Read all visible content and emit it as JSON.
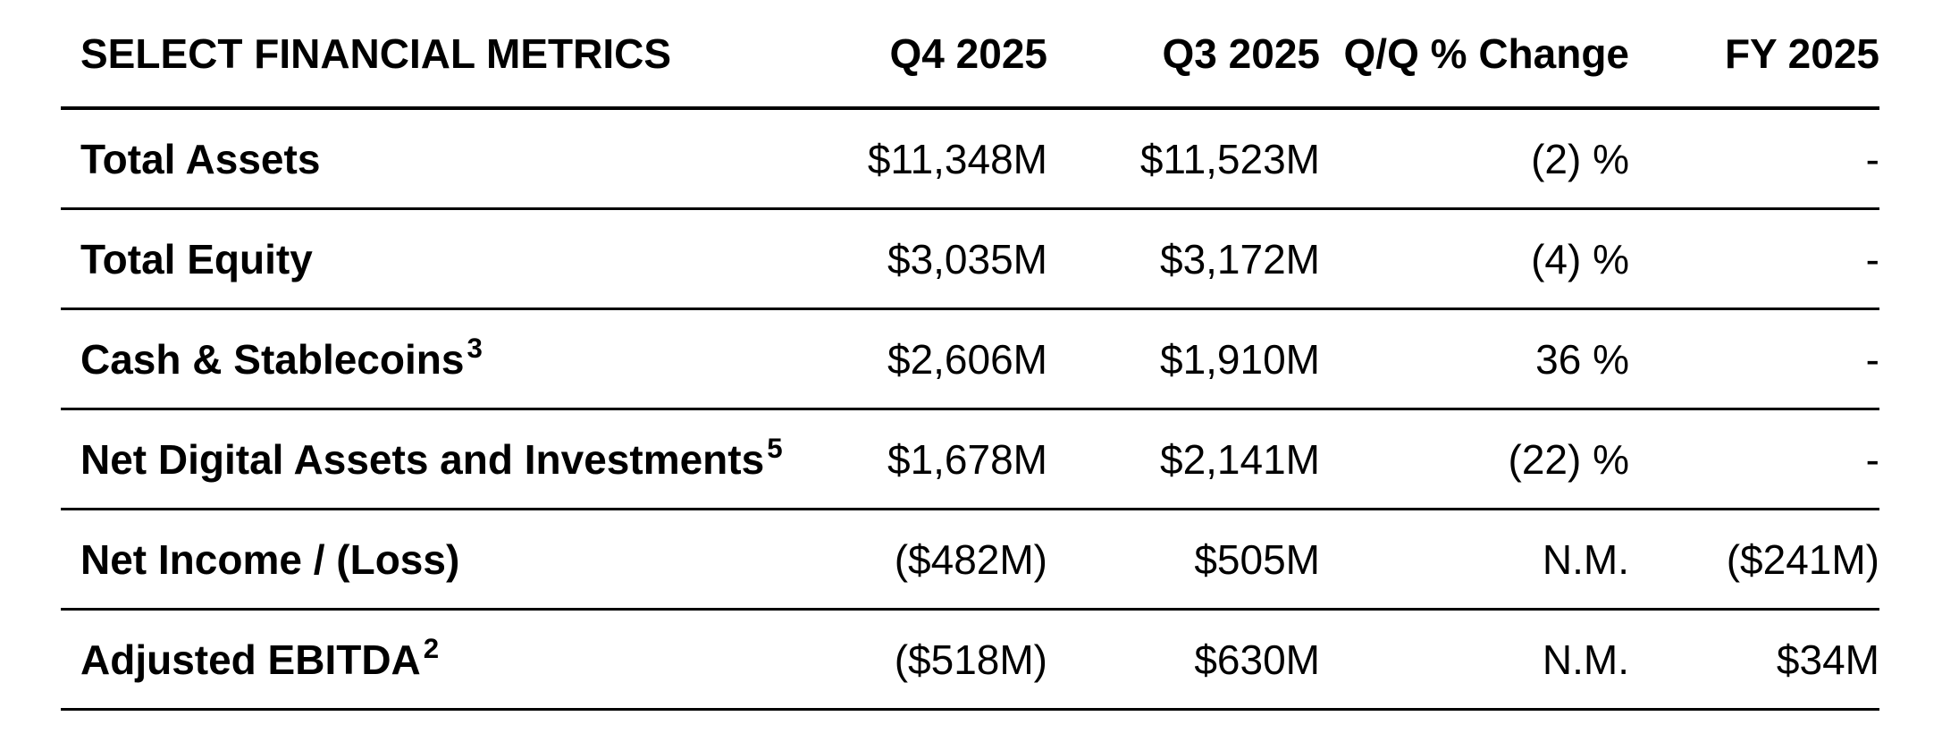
{
  "page": {
    "background_color": "#ffffff",
    "text_color": "#000000",
    "rule_color": "#000000"
  },
  "table": {
    "header": {
      "metric_label": "SELECT FINANCIAL METRICS",
      "columns": [
        "Q4 2025",
        "Q3 2025",
        "Q/Q % Change",
        "FY 2025"
      ]
    },
    "rows": [
      {
        "metric": "Total Assets",
        "sup": "",
        "q4": "$11,348M",
        "q3": "$11,523M",
        "qq": "(2) %",
        "fy": "-"
      },
      {
        "metric": "Total Equity",
        "sup": "",
        "q4": "$3,035M",
        "q3": "$3,172M",
        "qq": "(4) %",
        "fy": "-"
      },
      {
        "metric": "Cash & Stablecoins",
        "sup": "3",
        "q4": "$2,606M",
        "q3": "$1,910M",
        "qq": "36 %",
        "fy": "-"
      },
      {
        "metric": "Net Digital Assets and Investments",
        "sup": "5",
        "q4": "$1,678M",
        "q3": "$2,141M",
        "qq": "(22) %",
        "fy": "-"
      },
      {
        "metric": "Net Income / (Loss)",
        "sup": "",
        "q4": "($482M)",
        "q3": "$505M",
        "qq": "N.M.",
        "fy": "($241M)"
      },
      {
        "metric": "Adjusted EBITDA",
        "sup": "2",
        "q4": "($518M)",
        "q3": "$630M",
        "qq": "N.M.",
        "fy": "$34M"
      }
    ]
  }
}
